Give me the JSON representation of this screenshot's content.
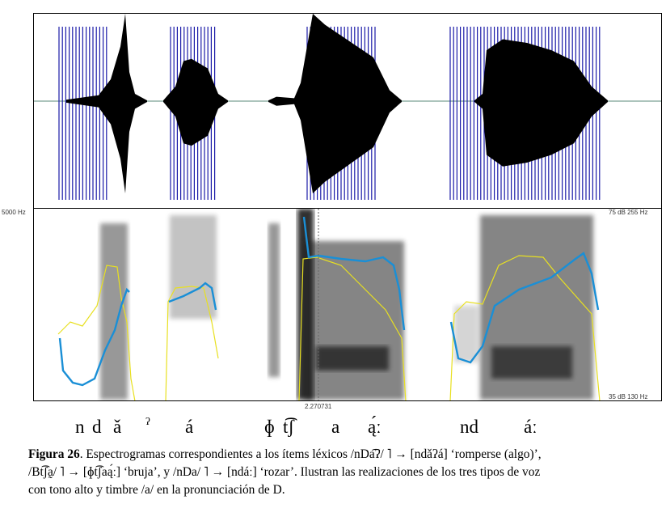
{
  "spectrogram": {
    "freq_top_left": "5000 Hz",
    "freq_top_right": "75 dB 255 Hz",
    "freq_bottom_right": "35 dB 130 Hz",
    "time_cursor": "2.270731"
  },
  "ipa_labels": {
    "w1_n": "n",
    "w1_d": "d",
    "w1_a": "ǎ",
    "w1_glottal": "ʔ",
    "w1_a2": "á",
    "w2_phi": "ɸ",
    "w2_tsh": "t͡ʃ",
    "w2_a": "a",
    "w2_a2": "ą́ː",
    "w3_nd": "nd",
    "w3_a": "áː"
  },
  "caption": {
    "figure_label": "Figura 26",
    "line1_text": ". Espectrogramas correspondientes a los ítems léxicos /nDa͡ʔ/ ˥ → [ndǎʔá] ‘romperse (algo)’,",
    "line2_text": "/Bt͡ʃa̰/ ˥ → [ɸt͡ʃaą́ː] ‘bruja’, y /nDa/ ˥ → [ndáː] ‘rozar’. Ilustran las realizaciones de los tres tipos de voz",
    "line3_text": "con tono alto y timbre /a/ en la pronunciación de D."
  },
  "colors": {
    "pulse_blue": "#1a1aa8",
    "pitch_blue": "#1a8fd6",
    "intensity_yellow": "#e8e020"
  }
}
